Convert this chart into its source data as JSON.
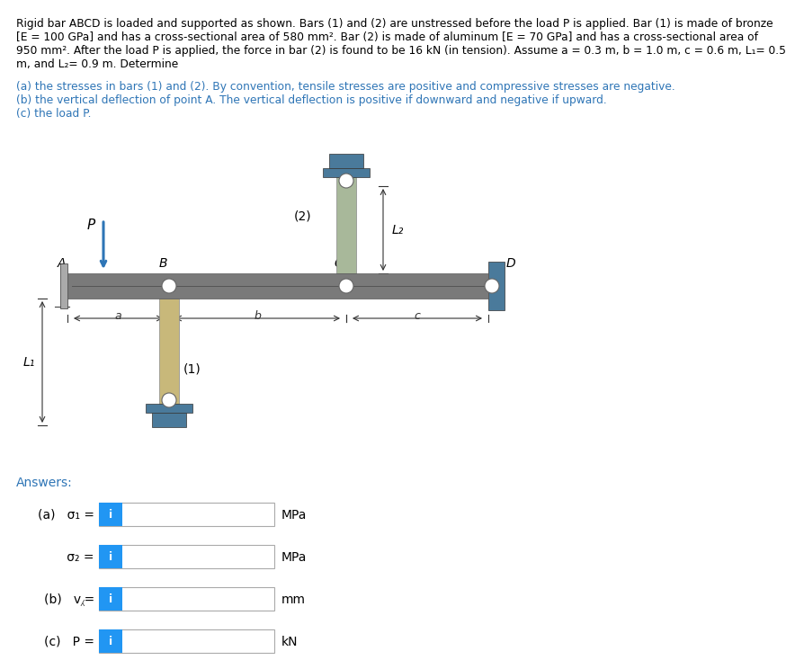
{
  "bg_color": "#ffffff",
  "text_color": "#000000",
  "blue_color": "#2e75b6",
  "bar1_color": "#c8b87a",
  "bar2_color": "#a8b89a",
  "rigid_bar_color": "#7a7a7a",
  "support_color": "#4a7a9b",
  "answer_btn_color": "#2196F3",
  "title_line1": "Rigid bar ABCD is loaded and supported as shown. Bars (1) and (2) are unstressed before the load P is applied. Bar (1) is made of bronze",
  "title_line2": "[E = 100 GPa] and has a cross-sectional area of 580 mm². Bar (2) is made of aluminum [E = 70 GPa] and has a cross-sectional area of",
  "title_line3": "950 mm². After the load P is applied, the force in bar (2) is found to be 16 kN (in tension). Assume a = 0.3 m, b = 1.0 m, c = 0.6 m, L₁= 0.5",
  "title_line4": "m, and L₂= 0.9 m. Determine",
  "sub1": "(a) the stresses in bars (1) and (2). By convention, tensile stresses are positive and compressive stresses are negative.",
  "sub2": "(b) the vertical deflection of point A. The vertical deflection is positive if downward and negative if upward.",
  "sub3": "(c) the load P.",
  "answers_label": "Answers:",
  "row_labels": [
    "(a)   σ₁ =",
    "      σ₂ =",
    "(b)   v⁁=",
    "(c)   P ="
  ],
  "row_units": [
    "MPa",
    "MPa",
    "mm",
    "kN"
  ]
}
